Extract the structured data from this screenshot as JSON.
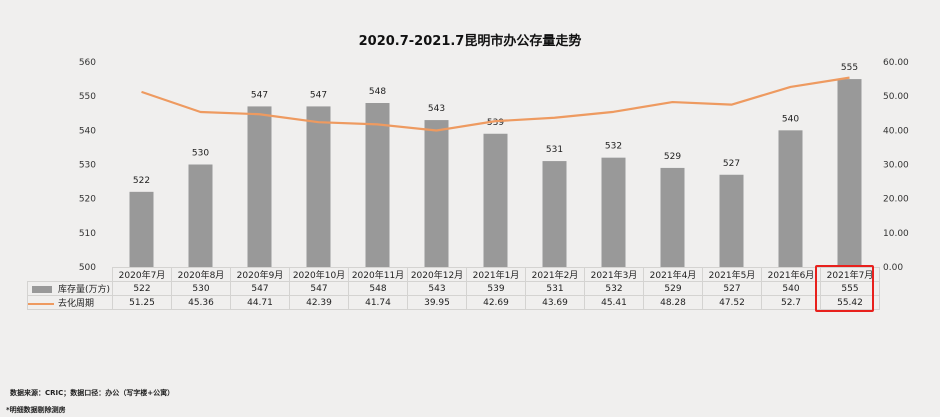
{
  "chart_data": {
    "type": "bar+line",
    "title": "2020.7-2021.7昆明市办公存量走势",
    "categories": [
      "2020年7月",
      "2020年8月",
      "2020年9月",
      "2020年10月",
      "2020年11月",
      "2020年12月",
      "2021年1月",
      "2021年2月",
      "2021年3月",
      "2021年4月",
      "2021年5月",
      "2021年6月",
      "2021年7月"
    ],
    "series": [
      {
        "name": "库存量(万方)",
        "type": "bar",
        "axis": "left",
        "color": "#999999",
        "values": [
          522,
          530,
          547,
          547,
          548,
          543,
          539,
          531,
          532,
          529,
          527,
          540,
          555
        ]
      },
      {
        "name": "去化周期",
        "type": "line",
        "axis": "right",
        "color": "#ee9a60",
        "values": [
          51.25,
          45.36,
          44.71,
          42.39,
          41.74,
          39.95,
          42.69,
          43.69,
          45.41,
          48.28,
          47.52,
          52.7,
          55.42
        ]
      }
    ],
    "left_axis": {
      "ylim": [
        500,
        560
      ],
      "ticks": [
        "500",
        "510",
        "520",
        "530",
        "540",
        "550",
        "560"
      ]
    },
    "right_axis": {
      "ylim": [
        0,
        60
      ],
      "ticks": [
        "0.00",
        "10.00",
        "20.00",
        "30.00",
        "40.00",
        "50.00",
        "60.00"
      ]
    },
    "bar_labels": [
      "522",
      "530",
      "547",
      "547",
      "548",
      "543",
      "539",
      "531",
      "532",
      "529",
      "527",
      "540",
      "555"
    ],
    "data_table": true,
    "highlight": {
      "category": "2021年7月",
      "color": "#e8201c"
    }
  },
  "footer": {
    "source": "数据来源：CRIC；数据口径：办公（写字楼+公寓）",
    "note": "*明细数据剔除测房"
  }
}
